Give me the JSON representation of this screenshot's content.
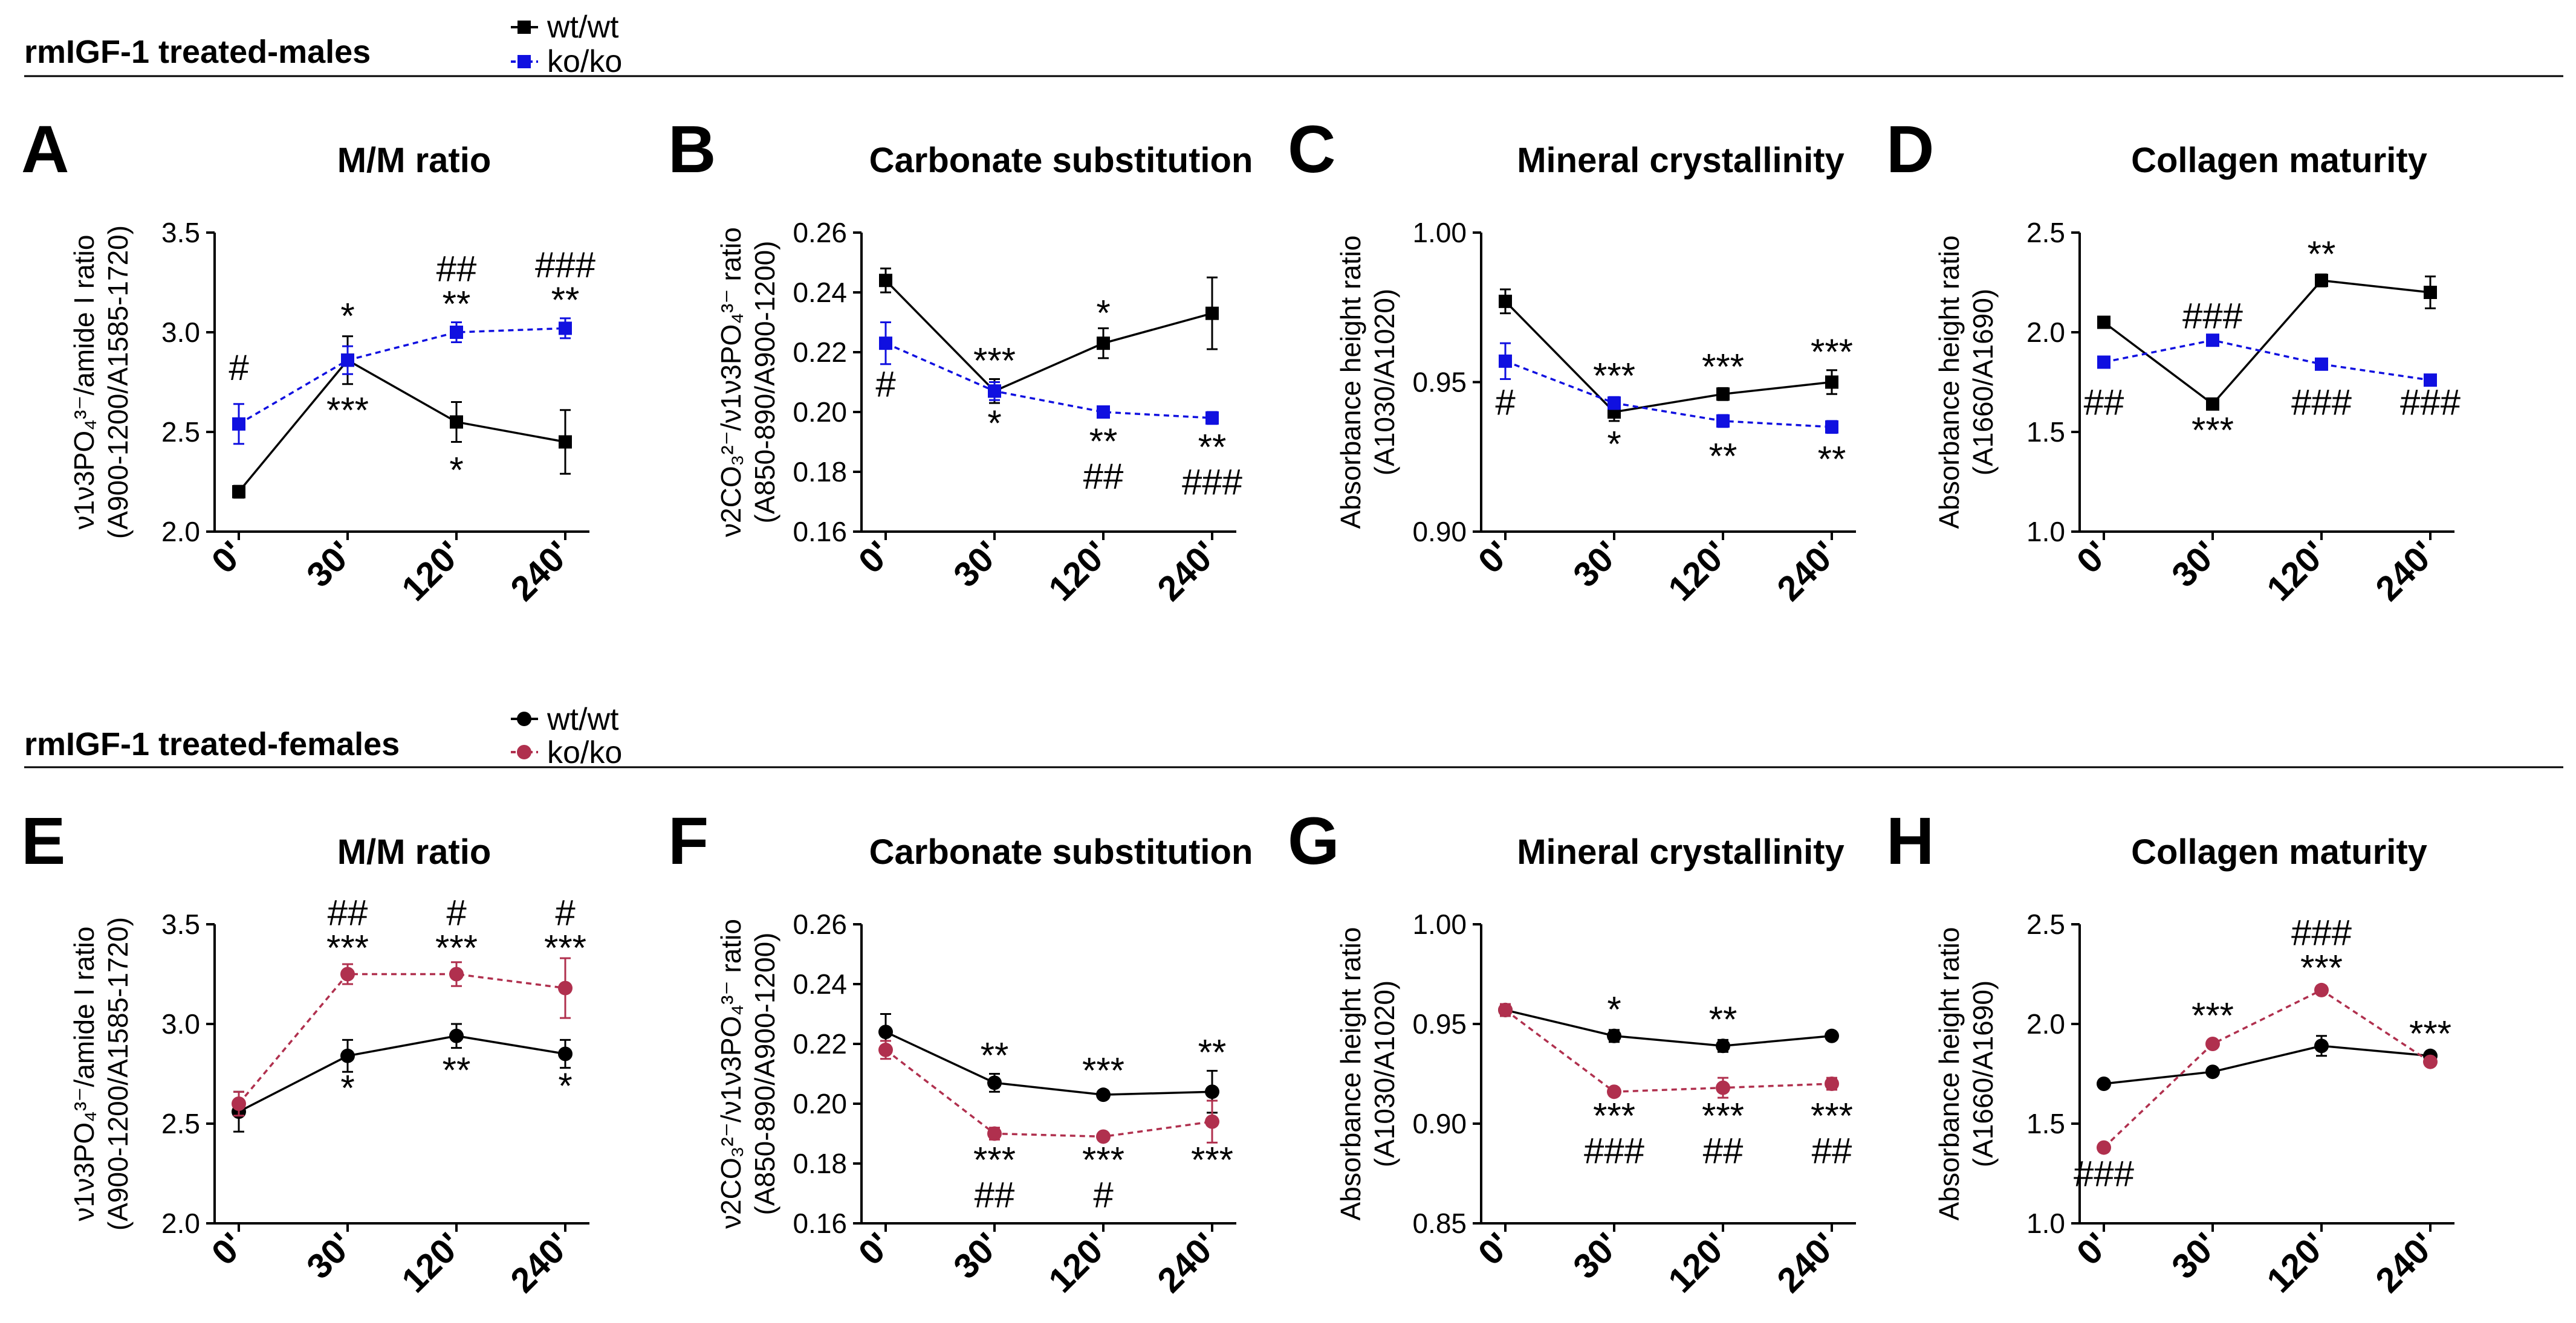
{
  "colors": {
    "wt": "#000000",
    "ko_male": "#1010e0",
    "ko_female": "#b0304e",
    "axis": "#000000"
  },
  "sections": [
    {
      "title": "rmIGF-1 treated-males",
      "legend": [
        {
          "label": "wt/wt",
          "marker": "square",
          "color": "#000000",
          "dashed": false
        },
        {
          "label": "ko/ko",
          "marker": "square",
          "color": "#1010e0",
          "dashed": true
        }
      ]
    },
    {
      "title": "rmIGF-1 treated-females",
      "legend": [
        {
          "label": "wt/wt",
          "marker": "circle",
          "color": "#000000",
          "dashed": false
        },
        {
          "label": "ko/ko",
          "marker": "circle",
          "color": "#b0304e",
          "dashed": true
        }
      ]
    }
  ],
  "chart_data": [
    {
      "type": "line",
      "letter": "A",
      "title": "M/M ratio",
      "marker": "square",
      "ylabel_lines": [
        "ν1ν3PO₄³⁻/amide I ratio",
        "(A900-1200/A1585-1720)"
      ],
      "categories": [
        "0'",
        "30'",
        "120'",
        "240'"
      ],
      "ylim": [
        2.0,
        3.5
      ],
      "yticks": [
        "2.0",
        "2.5",
        "3.0",
        "3.5"
      ],
      "series": [
        {
          "name": "wt/wt",
          "values": [
            2.2,
            2.86,
            2.55,
            2.45
          ],
          "errors": [
            0.03,
            0.12,
            0.1,
            0.16
          ]
        },
        {
          "name": "ko/ko",
          "values": [
            2.54,
            2.86,
            3.0,
            3.02
          ],
          "errors": [
            0.1,
            0.07,
            0.05,
            0.05
          ]
        }
      ],
      "annotations": [
        {
          "cat": 0,
          "lines": [
            "#"
          ],
          "value": 2.76,
          "pos": "above"
        },
        {
          "cat": 1,
          "lines": [
            "*"
          ],
          "value": 3.02,
          "pos": "above"
        },
        {
          "cat": 1,
          "lines": [
            "***"
          ],
          "value": 2.68,
          "pos": "below"
        },
        {
          "cat": 2,
          "lines": [
            "##",
            "**"
          ],
          "value": 3.08,
          "pos": "above"
        },
        {
          "cat": 2,
          "lines": [
            "*"
          ],
          "value": 2.38,
          "pos": "below"
        },
        {
          "cat": 3,
          "lines": [
            "###",
            "**"
          ],
          "value": 3.1,
          "pos": "above"
        }
      ]
    },
    {
      "type": "line",
      "letter": "B",
      "title": "Carbonate substitution",
      "marker": "square",
      "ylabel_lines": [
        "ν2CO₃²⁻/ν1ν3PO₄³⁻ ratio",
        "(A850-890/A900-1200)"
      ],
      "categories": [
        "0'",
        "30'",
        "120'",
        "240'"
      ],
      "ylim": [
        0.16,
        0.26
      ],
      "yticks": [
        "0.16",
        "0.18",
        "0.20",
        "0.22",
        "0.24",
        "0.26"
      ],
      "series": [
        {
          "name": "wt/wt",
          "values": [
            0.244,
            0.207,
            0.223,
            0.233
          ],
          "errors": [
            0.004,
            0.004,
            0.005,
            0.012
          ]
        },
        {
          "name": "ko/ko",
          "values": [
            0.223,
            0.207,
            0.2,
            0.198
          ],
          "errors": [
            0.007,
            0.003,
            0.001,
            0.002
          ]
        }
      ],
      "annotations": [
        {
          "cat": 0,
          "lines": [
            "#"
          ],
          "value": 0.214,
          "pos": "below"
        },
        {
          "cat": 1,
          "lines": [
            "***"
          ],
          "value": 0.213,
          "pos": "above"
        },
        {
          "cat": 1,
          "lines": [
            "*"
          ],
          "value": 0.201,
          "pos": "below"
        },
        {
          "cat": 2,
          "lines": [
            "*"
          ],
          "value": 0.229,
          "pos": "above"
        },
        {
          "cat": 2,
          "lines": [
            "**",
            "##"
          ],
          "value": 0.195,
          "pos": "below"
        },
        {
          "cat": 3,
          "lines": [
            "**",
            "###"
          ],
          "value": 0.193,
          "pos": "below"
        }
      ]
    },
    {
      "type": "line",
      "letter": "C",
      "title": "Mineral crystallinity",
      "marker": "square",
      "ylabel_lines": [
        "Absorbance height ratio",
        "(A1030/A1020)"
      ],
      "categories": [
        "0'",
        "30'",
        "120'",
        "240'"
      ],
      "ylim": [
        0.9,
        1.0
      ],
      "yticks": [
        "0.90",
        "0.95",
        "1.00"
      ],
      "series": [
        {
          "name": "wt/wt",
          "values": [
            0.977,
            0.94,
            0.946,
            0.95
          ],
          "errors": [
            0.004,
            0.003,
            0.002,
            0.004
          ]
        },
        {
          "name": "ko/ko",
          "values": [
            0.957,
            0.943,
            0.937,
            0.935
          ],
          "errors": [
            0.006,
            0.002,
            0.002,
            0.002
          ]
        }
      ],
      "annotations": [
        {
          "cat": 0,
          "lines": [
            "#"
          ],
          "value": 0.948,
          "pos": "below"
        },
        {
          "cat": 1,
          "lines": [
            "***"
          ],
          "value": 0.948,
          "pos": "above"
        },
        {
          "cat": 1,
          "lines": [
            "*"
          ],
          "value": 0.934,
          "pos": "below"
        },
        {
          "cat": 2,
          "lines": [
            "***"
          ],
          "value": 0.951,
          "pos": "above"
        },
        {
          "cat": 2,
          "lines": [
            "**"
          ],
          "value": 0.93,
          "pos": "below"
        },
        {
          "cat": 3,
          "lines": [
            "***"
          ],
          "value": 0.956,
          "pos": "above"
        },
        {
          "cat": 3,
          "lines": [
            "**"
          ],
          "value": 0.929,
          "pos": "below"
        }
      ]
    },
    {
      "type": "line",
      "letter": "D",
      "title": "Collagen maturity",
      "marker": "square",
      "ylabel_lines": [
        "Absorbance height ratio",
        "(A1660/A1690)"
      ],
      "categories": [
        "0'",
        "30'",
        "120'",
        "240'"
      ],
      "ylim": [
        1.0,
        2.5
      ],
      "yticks": [
        "1.0",
        "1.5",
        "2.0",
        "2.5"
      ],
      "series": [
        {
          "name": "wt/wt",
          "values": [
            2.05,
            1.64,
            2.26,
            2.2
          ],
          "errors": [
            0.02,
            0.02,
            0.03,
            0.08
          ]
        },
        {
          "name": "ko/ko",
          "values": [
            1.85,
            1.96,
            1.84,
            1.76
          ],
          "errors": [
            0.02,
            0.02,
            0.01,
            0.02
          ]
        }
      ],
      "annotations": [
        {
          "cat": 0,
          "lines": [
            "##"
          ],
          "value": 1.72,
          "pos": "below"
        },
        {
          "cat": 1,
          "lines": [
            "###"
          ],
          "value": 2.02,
          "pos": "above"
        },
        {
          "cat": 1,
          "lines": [
            "***"
          ],
          "value": 1.58,
          "pos": "below"
        },
        {
          "cat": 2,
          "lines": [
            "**"
          ],
          "value": 2.33,
          "pos": "above"
        },
        {
          "cat": 2,
          "lines": [
            "###"
          ],
          "value": 1.72,
          "pos": "below"
        },
        {
          "cat": 3,
          "lines": [
            "###"
          ],
          "value": 1.72,
          "pos": "below"
        }
      ]
    },
    {
      "type": "line",
      "letter": "E",
      "title": "M/M ratio",
      "marker": "circle",
      "ylabel_lines": [
        "ν1ν3PO₄³⁻/amide I ratio",
        "(A900-1200/A1585-1720)"
      ],
      "categories": [
        "0'",
        "30'",
        "120'",
        "240'"
      ],
      "ylim": [
        2.0,
        3.5
      ],
      "yticks": [
        "2.0",
        "2.5",
        "3.0",
        "3.5"
      ],
      "series": [
        {
          "name": "wt/wt",
          "values": [
            2.56,
            2.84,
            2.94,
            2.85
          ],
          "errors": [
            0.1,
            0.08,
            0.06,
            0.07
          ]
        },
        {
          "name": "ko/ko",
          "values": [
            2.6,
            3.25,
            3.25,
            3.18
          ],
          "errors": [
            0.06,
            0.05,
            0.06,
            0.15
          ]
        }
      ],
      "annotations": [
        {
          "cat": 1,
          "lines": [
            "##",
            "***"
          ],
          "value": 3.32,
          "pos": "above"
        },
        {
          "cat": 1,
          "lines": [
            "*"
          ],
          "value": 2.75,
          "pos": "below"
        },
        {
          "cat": 2,
          "lines": [
            "#",
            "***"
          ],
          "value": 3.32,
          "pos": "above"
        },
        {
          "cat": 2,
          "lines": [
            "**"
          ],
          "value": 2.84,
          "pos": "below"
        },
        {
          "cat": 3,
          "lines": [
            "#",
            "***"
          ],
          "value": 3.32,
          "pos": "above"
        },
        {
          "cat": 3,
          "lines": [
            "*"
          ],
          "value": 2.76,
          "pos": "below"
        }
      ]
    },
    {
      "type": "line",
      "letter": "F",
      "title": "Carbonate substitution",
      "marker": "circle",
      "ylabel_lines": [
        "ν2CO₃²⁻/ν1ν3PO₄³⁻ ratio",
        "(A850-890/A900-1200)"
      ],
      "categories": [
        "0'",
        "30'",
        "120'",
        "240'"
      ],
      "ylim": [
        0.16,
        0.26
      ],
      "yticks": [
        "0.16",
        "0.18",
        "0.20",
        "0.22",
        "0.24",
        "0.26"
      ],
      "series": [
        {
          "name": "wt/wt",
          "values": [
            0.224,
            0.207,
            0.203,
            0.204
          ],
          "errors": [
            0.006,
            0.003,
            0.001,
            0.007
          ]
        },
        {
          "name": "ko/ko",
          "values": [
            0.218,
            0.19,
            0.189,
            0.194
          ],
          "errors": [
            0.003,
            0.002,
            0.001,
            0.007
          ]
        }
      ],
      "annotations": [
        {
          "cat": 1,
          "lines": [
            "**"
          ],
          "value": 0.212,
          "pos": "above"
        },
        {
          "cat": 1,
          "lines": [
            "***",
            "##"
          ],
          "value": 0.186,
          "pos": "below"
        },
        {
          "cat": 2,
          "lines": [
            "***"
          ],
          "value": 0.207,
          "pos": "above"
        },
        {
          "cat": 2,
          "lines": [
            "***",
            "#"
          ],
          "value": 0.186,
          "pos": "below"
        },
        {
          "cat": 3,
          "lines": [
            "**"
          ],
          "value": 0.213,
          "pos": "above"
        },
        {
          "cat": 3,
          "lines": [
            "***"
          ],
          "value": 0.186,
          "pos": "below"
        }
      ]
    },
    {
      "type": "line",
      "letter": "G",
      "title": "Mineral crystallinity",
      "marker": "circle",
      "ylabel_lines": [
        "Absorbance height ratio",
        "(A1030/A1020)"
      ],
      "categories": [
        "0'",
        "30'",
        "120'",
        "240'"
      ],
      "ylim": [
        0.85,
        1.0
      ],
      "yticks": [
        "0.85",
        "0.90",
        "0.95",
        "1.00"
      ],
      "series": [
        {
          "name": "wt/wt",
          "values": [
            0.957,
            0.944,
            0.939,
            0.944
          ],
          "errors": [
            0.003,
            0.003,
            0.003,
            0.001
          ]
        },
        {
          "name": "ko/ko",
          "values": [
            0.957,
            0.916,
            0.918,
            0.92
          ],
          "errors": [
            0.003,
            0.002,
            0.005,
            0.003
          ]
        }
      ],
      "annotations": [
        {
          "cat": 1,
          "lines": [
            "*"
          ],
          "value": 0.951,
          "pos": "above"
        },
        {
          "cat": 1,
          "lines": [
            "***",
            "###"
          ],
          "value": 0.911,
          "pos": "below"
        },
        {
          "cat": 2,
          "lines": [
            "**"
          ],
          "value": 0.946,
          "pos": "above"
        },
        {
          "cat": 2,
          "lines": [
            "***",
            "##"
          ],
          "value": 0.911,
          "pos": "below"
        },
        {
          "cat": 3,
          "lines": [
            "***",
            "##"
          ],
          "value": 0.911,
          "pos": "below"
        }
      ]
    },
    {
      "type": "line",
      "letter": "H",
      "title": "Collagen maturity",
      "marker": "circle",
      "ylabel_lines": [
        "Absorbance height ratio",
        "(A1660/A1690)"
      ],
      "categories": [
        "0'",
        "30'",
        "120'",
        "240'"
      ],
      "ylim": [
        1.0,
        2.5
      ],
      "yticks": [
        "1.0",
        "1.5",
        "2.0",
        "2.5"
      ],
      "series": [
        {
          "name": "wt/wt",
          "values": [
            1.7,
            1.76,
            1.89,
            1.84
          ],
          "errors": [
            0.02,
            0.02,
            0.05,
            0.02
          ]
        },
        {
          "name": "ko/ko",
          "values": [
            1.38,
            1.9,
            2.17,
            1.81
          ],
          "errors": [
            0.02,
            0.02,
            0.02,
            0.02
          ]
        }
      ],
      "annotations": [
        {
          "cat": 0,
          "lines": [
            "###"
          ],
          "value": 1.32,
          "pos": "below"
        },
        {
          "cat": 1,
          "lines": [
            "***"
          ],
          "value": 1.98,
          "pos": "above"
        },
        {
          "cat": 2,
          "lines": [
            "###",
            "***"
          ],
          "value": 2.22,
          "pos": "above"
        },
        {
          "cat": 3,
          "lines": [
            "***"
          ],
          "value": 1.89,
          "pos": "above"
        }
      ]
    }
  ]
}
